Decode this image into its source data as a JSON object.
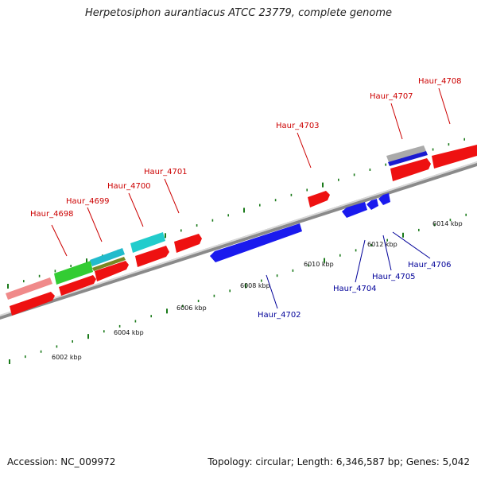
{
  "title": "Herpetosiphon aurantiacus ATCC 23779, complete genome",
  "footer": {
    "accession": "Accession: NC_009972",
    "summary": "Topology: circular; Length: 6,346,587 bp; Genes: 5,042"
  },
  "colors": {
    "forward_gene": "#ff1a1a",
    "reverse_gene": "#1a1aff",
    "forward_label": "#cc0000",
    "reverse_label": "#000099",
    "tick": "#1a7a1a",
    "backbone": "#888888"
  },
  "scale_labels": [
    "6002 kbp",
    "6004 kbp",
    "6006 kbp",
    "6008 kbp",
    "6010 kbp",
    "6012 kbp",
    "6014 kbp"
  ],
  "forward_genes": [
    "Haur_4698",
    "Haur_4699",
    "Haur_4700",
    "Haur_4701",
    "Haur_4703",
    "Haur_4707",
    "Haur_4708"
  ],
  "reverse_genes": [
    "Haur_4702",
    "Haur_4704",
    "Haur_4705",
    "Haur_4706"
  ]
}
